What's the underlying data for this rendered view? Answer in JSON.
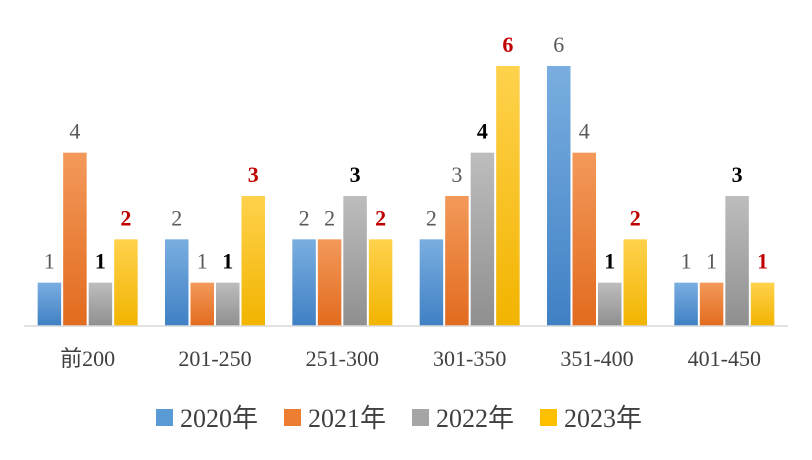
{
  "chart_data": {
    "type": "bar",
    "categories": [
      "前200",
      "201-250",
      "251-300",
      "301-350",
      "351-400",
      "401-450"
    ],
    "series": [
      {
        "name": "2020年",
        "values": [
          1,
          2,
          2,
          2,
          6,
          1
        ],
        "color": "#5B9BD5"
      },
      {
        "name": "2021年",
        "values": [
          4,
          1,
          2,
          3,
          4,
          1
        ],
        "color": "#ED7D31"
      },
      {
        "name": "2022年",
        "values": [
          1,
          1,
          3,
          4,
          1,
          3
        ],
        "color": "#A5A5A5"
      },
      {
        "name": "2023年",
        "values": [
          2,
          3,
          2,
          6,
          2,
          1
        ],
        "color": "#FFC000"
      }
    ],
    "ylim": [
      0,
      6
    ],
    "grid": false,
    "legend": "bottom",
    "label_colors": {
      "2020年": "#595959",
      "2021年": "#595959",
      "2022年": "#000000",
      "2023年": "#C00000"
    }
  }
}
